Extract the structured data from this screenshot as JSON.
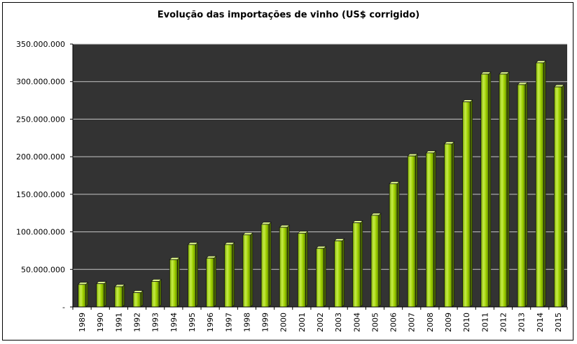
{
  "chart_data": {
    "type": "bar",
    "title": "Evolução das importações de vinho (US$ corrigido)",
    "xlabel": "",
    "ylabel": "",
    "categories": [
      "1989",
      "1990",
      "1991",
      "1992",
      "1993",
      "1994",
      "1995",
      "1996",
      "1997",
      "1998",
      "1999",
      "2000",
      "2001",
      "2002",
      "2003",
      "2004",
      "2005",
      "2006",
      "2007",
      "2008",
      "2009",
      "2010",
      "2011",
      "2012",
      "2013",
      "2014",
      "2015"
    ],
    "values": [
      30000000,
      31000000,
      27000000,
      19000000,
      34000000,
      63000000,
      83000000,
      65000000,
      83000000,
      96000000,
      110000000,
      106000000,
      98000000,
      78000000,
      88000000,
      112000000,
      122000000,
      164000000,
      201000000,
      205000000,
      217000000,
      273000000,
      310000000,
      310000000,
      296000000,
      325000000,
      293000000
    ],
    "ylim": [
      0,
      350000000
    ],
    "yticks": [
      0,
      50000000,
      100000000,
      150000000,
      200000000,
      250000000,
      300000000,
      350000000
    ],
    "ytick_labels": [
      "-",
      "50.000.000",
      "100.000.000",
      "150.000.000",
      "200.000.000",
      "250.000.000",
      "300.000.000",
      "350.000.000"
    ],
    "grid": true,
    "legend": "none",
    "colors": {
      "plot_background": "#333333",
      "gridline": "#c8c8c8",
      "bar_fill": "#99cc00",
      "bar_highlight": "#c6ec4a",
      "bar_shadow": "#4d6b00",
      "bar_top": "#ddf58a",
      "bar_edge": "#111111"
    }
  }
}
